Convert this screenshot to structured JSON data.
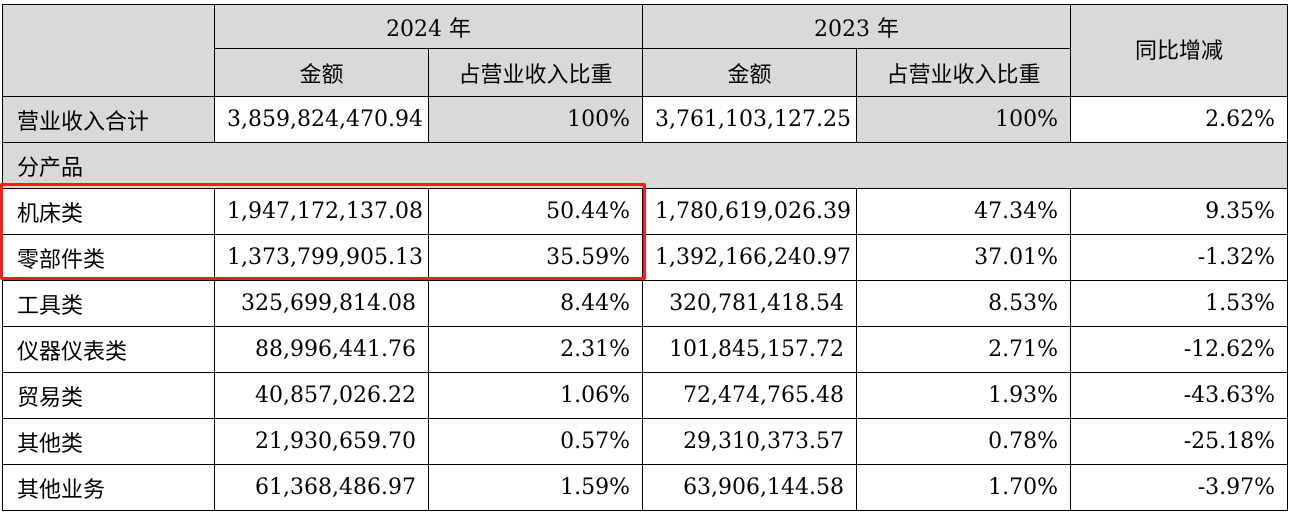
{
  "header": {
    "year_2024": "2024 年",
    "year_2023": "2023 年",
    "amount": "金额",
    "share": "占营业收入比重",
    "yoy": "同比增减"
  },
  "total": {
    "label": "营业收入合计",
    "amount_2024": "3,859,824,470.94",
    "share_2024": "100%",
    "amount_2023": "3,761,103,127.25",
    "share_2023": "100%",
    "yoy": "2.62%"
  },
  "section_label": "分产品",
  "rows": [
    {
      "label": "机床类",
      "amount_2024": "1,947,172,137.08",
      "share_2024": "50.44%",
      "amount_2023": "1,780,619,026.39",
      "share_2023": "47.34%",
      "yoy": "9.35%"
    },
    {
      "label": "零部件类",
      "amount_2024": "1,373,799,905.13",
      "share_2024": "35.59%",
      "amount_2023": "1,392,166,240.97",
      "share_2023": "37.01%",
      "yoy": "-1.32%"
    },
    {
      "label": "工具类",
      "amount_2024": "325,699,814.08",
      "share_2024": "8.44%",
      "amount_2023": "320,781,418.54",
      "share_2023": "8.53%",
      "yoy": "1.53%"
    },
    {
      "label": "仪器仪表类",
      "amount_2024": "88,996,441.76",
      "share_2024": "2.31%",
      "amount_2023": "101,845,157.72",
      "share_2023": "2.71%",
      "yoy": "-12.62%"
    },
    {
      "label": "贸易类",
      "amount_2024": "40,857,026.22",
      "share_2024": "1.06%",
      "amount_2023": "72,474,765.48",
      "share_2023": "1.93%",
      "yoy": "-43.63%"
    },
    {
      "label": "其他类",
      "amount_2024": "21,930,659.70",
      "share_2024": "0.57%",
      "amount_2023": "29,310,373.57",
      "share_2023": "0.78%",
      "yoy": "-25.18%"
    },
    {
      "label": "其他业务",
      "amount_2024": "61,368,486.97",
      "share_2024": "1.59%",
      "amount_2023": "63,906,144.58",
      "share_2023": "1.70%",
      "yoy": "-3.97%"
    }
  ],
  "colors": {
    "header_gray": "#d9d9d9",
    "highlight_red": "#ff1a1a"
  }
}
